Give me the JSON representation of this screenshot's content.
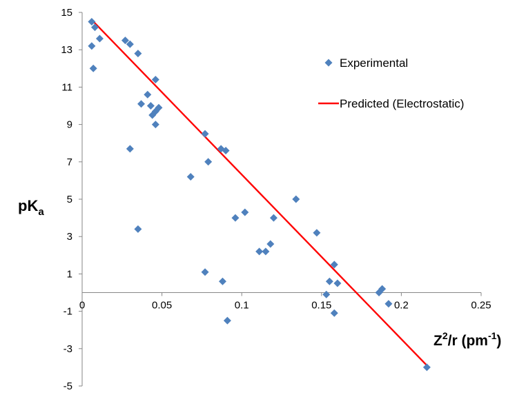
{
  "chart_data": {
    "type": "scatter",
    "x_range": [
      0,
      0.25
    ],
    "y_range": [
      -5,
      15
    ],
    "x_ticks": [
      "0",
      "0.05",
      "0.1",
      "0.15",
      "0.2",
      "0.25"
    ],
    "y_ticks": [
      "-5",
      "-3",
      "-1",
      "1",
      "3",
      "5",
      "7",
      "9",
      "11",
      "13",
      "15"
    ],
    "xlabel": {
      "base": "Z",
      "sup1": "2",
      "mid": "/r (pm",
      "sup2": "-1",
      "end": ")"
    },
    "ylabel": {
      "base": "pK",
      "sub": "a"
    },
    "legend": [
      {
        "label": "Experimental",
        "kind": "marker",
        "color": "#4f81bd"
      },
      {
        "label": "Predicted (Electrostatic)",
        "kind": "line",
        "color": "#ff0000"
      }
    ],
    "series": [
      {
        "name": "Experimental",
        "color": "#4f81bd",
        "points": [
          [
            0.006,
            14.5
          ],
          [
            0.008,
            14.2
          ],
          [
            0.006,
            13.2
          ],
          [
            0.011,
            13.6
          ],
          [
            0.007,
            12.0
          ],
          [
            0.027,
            13.5
          ],
          [
            0.03,
            13.3
          ],
          [
            0.035,
            12.8
          ],
          [
            0.046,
            11.4
          ],
          [
            0.041,
            10.6
          ],
          [
            0.037,
            10.1
          ],
          [
            0.043,
            10.0
          ],
          [
            0.048,
            9.9
          ],
          [
            0.046,
            9.7
          ],
          [
            0.044,
            9.5
          ],
          [
            0.046,
            9.0
          ],
          [
            0.03,
            7.7
          ],
          [
            0.035,
            3.4
          ],
          [
            0.068,
            6.2
          ],
          [
            0.077,
            8.5
          ],
          [
            0.079,
            7.0
          ],
          [
            0.087,
            7.7
          ],
          [
            0.09,
            7.6
          ],
          [
            0.077,
            1.1
          ],
          [
            0.088,
            0.6
          ],
          [
            0.091,
            -1.5
          ],
          [
            0.096,
            4.0
          ],
          [
            0.102,
            4.3
          ],
          [
            0.12,
            4.0
          ],
          [
            0.111,
            2.2
          ],
          [
            0.115,
            2.2
          ],
          [
            0.118,
            2.6
          ],
          [
            0.134,
            5.0
          ],
          [
            0.147,
            3.2
          ],
          [
            0.158,
            1.5
          ],
          [
            0.155,
            0.6
          ],
          [
            0.16,
            0.5
          ],
          [
            0.153,
            -0.1
          ],
          [
            0.158,
            -1.1
          ],
          [
            0.188,
            0.2
          ],
          [
            0.186,
            0.0
          ],
          [
            0.192,
            -0.6
          ],
          [
            0.216,
            -4.0
          ]
        ]
      },
      {
        "name": "Predicted (Electrostatic)",
        "color": "#ff0000",
        "line": [
          [
            0.006,
            14.6
          ],
          [
            0.216,
            -3.9
          ]
        ]
      }
    ]
  }
}
